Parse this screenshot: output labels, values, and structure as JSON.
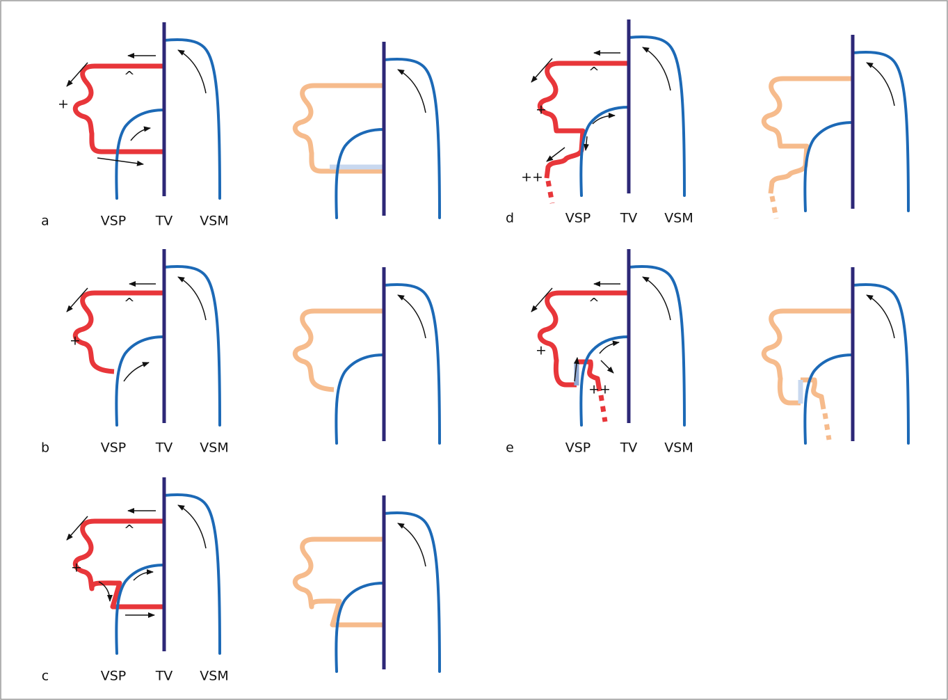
{
  "panels": [
    {
      "label": "a",
      "vsp": "VSP",
      "tv": "TV",
      "vsm": "VSM",
      "caret": "^",
      "plus": "+"
    },
    {
      "label": "b",
      "vsp": "VSP",
      "tv": "TV",
      "vsm": "VSM",
      "caret": "^",
      "plus": "+"
    },
    {
      "label": "c",
      "vsp": "VSP",
      "tv": "TV",
      "vsm": "VSM",
      "caret": "^",
      "plus": "+"
    },
    {
      "label": "d",
      "vsp": "VSP",
      "tv": "TV",
      "vsm": "VSM",
      "caret": "^",
      "plus": "+",
      "plus2": "++"
    },
    {
      "label": "e",
      "vsp": "VSP",
      "tv": "TV",
      "vsm": "VSM",
      "caret": "^",
      "plus": "+",
      "plus2": "++"
    }
  ]
}
